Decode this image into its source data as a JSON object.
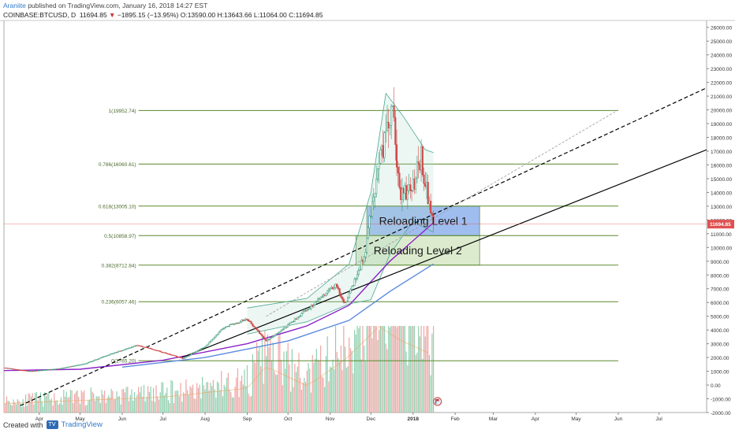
{
  "header": {
    "author": "Araniite",
    "publish_text": "published on TradingView.com, January 16, 2018 14:27 EST",
    "symbol": "COINBASE:BTCUSD, D",
    "last": "11694.85",
    "change": "−1895.15 (−13.95%)",
    "ohlc": "O:13590.00 H:13643.66 L:11064.00 C:11694.85"
  },
  "footer": {
    "created_with": "Created with",
    "brand": "TradingView",
    "logo_icon": "tradingview-logo-icon"
  },
  "colors": {
    "fib": "#5a8a2c",
    "candle_up": "#3a9a78",
    "candle_down": "#d04848",
    "vol_up": "#8fd0b0",
    "vol_down": "#f2a4a4",
    "box1": "#8fb1ec",
    "box2": "#d6e8c6",
    "price_tag": "#e05050"
  },
  "chart_data": {
    "type": "candlestick",
    "x_range": [
      "2017-03-06",
      "2018-08-05"
    ],
    "y_range": [
      -2000,
      26500
    ],
    "y_ticks": [
      "26000.00",
      "25000.00",
      "24000.00",
      "23000.00",
      "22000.00",
      "21000.00",
      "20000.00",
      "19000.00",
      "18000.00",
      "17000.00",
      "16000.00",
      "15000.00",
      "14000.00",
      "13000.00",
      "12000.00",
      "11000.00",
      "10000.00",
      "9000.00",
      "8000.00",
      "7000.00",
      "6000.00",
      "5000.00",
      "4000.00",
      "3000.00",
      "2000.00",
      "1000.00",
      "0.00",
      "-1000.00",
      "-2000.00"
    ],
    "x_ticks": [
      {
        "label": "Apr",
        "date": "2017-04-01"
      },
      {
        "label": "May",
        "date": "2017-05-01"
      },
      {
        "label": "Jun",
        "date": "2017-06-01"
      },
      {
        "label": "Jul",
        "date": "2017-07-01"
      },
      {
        "label": "Aug",
        "date": "2017-08-01"
      },
      {
        "label": "Sep",
        "date": "2017-09-01"
      },
      {
        "label": "Oct",
        "date": "2017-10-01"
      },
      {
        "label": "Nov",
        "date": "2017-11-01"
      },
      {
        "label": "Dec",
        "date": "2017-12-01"
      },
      {
        "label": "2018",
        "date": "2018-01-01",
        "bold": true
      },
      {
        "label": "Feb",
        "date": "2018-02-01"
      },
      {
        "label": "Mar",
        "date": "2018-03-01"
      },
      {
        "label": "Apr",
        "date": "2018-04-01"
      },
      {
        "label": "May",
        "date": "2018-05-01"
      },
      {
        "label": "Jun",
        "date": "2018-06-01"
      },
      {
        "label": "Jul",
        "date": "2018-07-01"
      }
    ],
    "last_price": {
      "value": 11694.85,
      "label": "11694.85"
    },
    "fib_levels": [
      {
        "label": "1(19952.74)",
        "value": 19952.74
      },
      {
        "label": "0.786(16060.61)",
        "value": 16060.61
      },
      {
        "label": "0.618(13005.10)",
        "value": 13005.1
      },
      {
        "label": "0.5(10858.97)",
        "value": 10858.97
      },
      {
        "label": "0.382(8712.84)",
        "value": 8712.84
      },
      {
        "label": "0.236(6057.46)",
        "value": 6057.46
      },
      {
        "label": "0(1765.20)",
        "value": 1765.2
      }
    ],
    "fib_start": "2017-06-13",
    "fib_end": "2018-06-01",
    "zones": [
      {
        "label": "Reloading Level 1",
        "from": "2017-11-28",
        "to": "2018-02-19",
        "y1": 10858.97,
        "y2": 13005.1,
        "color": "#8fb1ec"
      },
      {
        "label": "Reloading Level 2",
        "from": "2017-11-20",
        "to": "2018-02-19",
        "y1": 8712.84,
        "y2": 10858.97,
        "color": "#d6e8c6"
      }
    ],
    "trendlines": [
      {
        "name": "dashed-trendline",
        "style": "dashed",
        "from": {
          "date": "2017-03-18",
          "value": -1500
        },
        "to": {
          "date": "2018-08-05",
          "value": 21600
        }
      },
      {
        "name": "solid-trendline",
        "style": "solid",
        "from": {
          "date": "2017-07-15",
          "value": 2000
        },
        "to": {
          "date": "2018-08-05",
          "value": 17100
        }
      },
      {
        "name": "dotted-trendline",
        "style": "dotted",
        "from": {
          "date": "2017-09-15",
          "value": 5000
        },
        "to": {
          "date": "2018-06-01",
          "value": 20000
        }
      }
    ],
    "price_path": [
      {
        "date": "2017-03-06",
        "value": 1250
      },
      {
        "date": "2017-03-25",
        "value": 1000
      },
      {
        "date": "2017-04-15",
        "value": 1180
      },
      {
        "date": "2017-05-05",
        "value": 1550
      },
      {
        "date": "2017-05-25",
        "value": 2300
      },
      {
        "date": "2017-06-12",
        "value": 2900
      },
      {
        "date": "2017-06-25",
        "value": 2550
      },
      {
        "date": "2017-07-16",
        "value": 1920
      },
      {
        "date": "2017-08-01",
        "value": 2800
      },
      {
        "date": "2017-08-15",
        "value": 4200
      },
      {
        "date": "2017-09-01",
        "value": 4800
      },
      {
        "date": "2017-09-15",
        "value": 3200
      },
      {
        "date": "2017-10-01",
        "value": 4350
      },
      {
        "date": "2017-10-20",
        "value": 5900
      },
      {
        "date": "2017-11-05",
        "value": 7300
      },
      {
        "date": "2017-11-12",
        "value": 5900
      },
      {
        "date": "2017-11-26",
        "value": 9300
      },
      {
        "date": "2017-12-07",
        "value": 16500
      },
      {
        "date": "2017-12-17",
        "value": 19800
      },
      {
        "date": "2017-12-22",
        "value": 14000
      },
      {
        "date": "2017-12-31",
        "value": 14200
      },
      {
        "date": "2018-01-07",
        "value": 16600
      },
      {
        "date": "2018-01-12",
        "value": 13600
      },
      {
        "date": "2018-01-16",
        "value": 11694.85
      }
    ],
    "moving_averages": [
      {
        "name": "ma-purple",
        "color": "#8a22c8",
        "points": [
          {
            "date": "2017-03-06",
            "value": 1050
          },
          {
            "date": "2017-05-01",
            "value": 1150
          },
          {
            "date": "2017-07-01",
            "value": 1800
          },
          {
            "date": "2017-09-01",
            "value": 3000
          },
          {
            "date": "2017-10-15",
            "value": 4300
          },
          {
            "date": "2017-11-15",
            "value": 5800
          },
          {
            "date": "2017-12-15",
            "value": 9000
          },
          {
            "date": "2018-01-16",
            "value": 11800
          }
        ]
      },
      {
        "name": "ma-blue",
        "color": "#5a8ae0",
        "points": [
          {
            "date": "2017-06-01",
            "value": 1300
          },
          {
            "date": "2017-08-01",
            "value": 2000
          },
          {
            "date": "2017-10-01",
            "value": 3200
          },
          {
            "date": "2017-11-15",
            "value": 4700
          },
          {
            "date": "2017-12-15",
            "value": 6800
          },
          {
            "date": "2018-01-16",
            "value": 8800
          }
        ]
      }
    ],
    "bollinger": {
      "upper": [
        {
          "date": "2017-09-01",
          "value": 5600
        },
        {
          "date": "2017-10-15",
          "value": 6300
        },
        {
          "date": "2017-11-15",
          "value": 8800
        },
        {
          "date": "2017-12-01",
          "value": 14000
        },
        {
          "date": "2017-12-12",
          "value": 21200
        },
        {
          "date": "2017-12-25",
          "value": 19500
        },
        {
          "date": "2018-01-10",
          "value": 17100
        },
        {
          "date": "2018-01-16",
          "value": 16900
        }
      ],
      "lower": [
        {
          "date": "2017-09-01",
          "value": 3700
        },
        {
          "date": "2017-10-15",
          "value": 4600
        },
        {
          "date": "2017-11-15",
          "value": 5900
        },
        {
          "date": "2017-12-01",
          "value": 6200
        },
        {
          "date": "2017-12-15",
          "value": 9500
        },
        {
          "date": "2018-01-01",
          "value": 11900
        },
        {
          "date": "2018-01-16",
          "value": 11100
        }
      ]
    },
    "volume_profile": [
      {
        "date": "2017-03-06",
        "value": 40
      },
      {
        "date": "2017-05-01",
        "value": 55
      },
      {
        "date": "2017-07-01",
        "value": 70
      },
      {
        "date": "2017-09-01",
        "value": 110
      },
      {
        "date": "2017-09-15",
        "value": 210
      },
      {
        "date": "2017-10-15",
        "value": 120
      },
      {
        "date": "2017-11-12",
        "value": 240
      },
      {
        "date": "2017-12-07",
        "value": 390
      },
      {
        "date": "2017-12-22",
        "value": 330
      },
      {
        "date": "2018-01-16",
        "value": 260
      }
    ]
  }
}
